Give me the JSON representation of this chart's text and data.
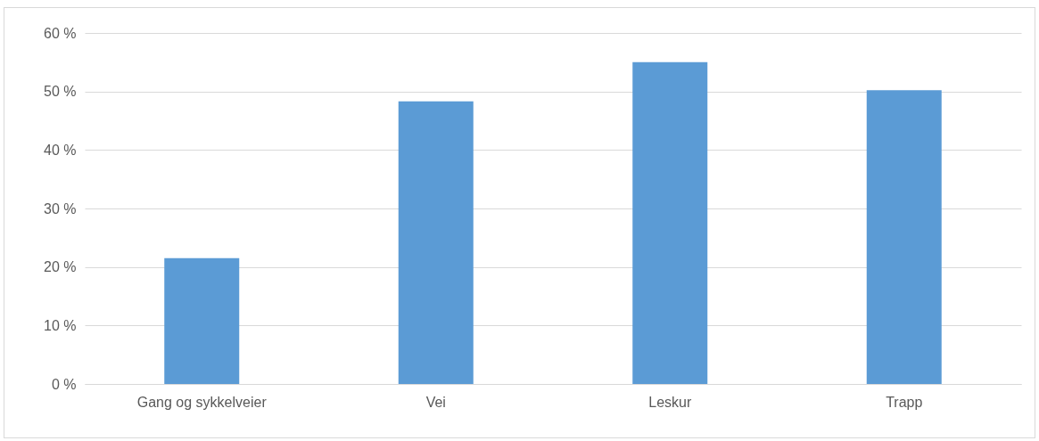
{
  "chart_data": {
    "type": "bar",
    "categories": [
      "Gang og sykkelveier",
      "Vei",
      "Leskur",
      "Trapp"
    ],
    "values": [
      21.5,
      48.3,
      55,
      50.2
    ],
    "color": "#5b9bd5",
    "ylim": [
      0,
      60
    ],
    "yticks": [
      {
        "value": 0,
        "label": "0 %"
      },
      {
        "value": 10,
        "label": "10 %"
      },
      {
        "value": 20,
        "label": "20 %"
      },
      {
        "value": 30,
        "label": "30 %"
      },
      {
        "value": 40,
        "label": "40 %"
      },
      {
        "value": 50,
        "label": "50 %"
      },
      {
        "value": 60,
        "label": "60 %"
      }
    ],
    "grid": "y"
  }
}
